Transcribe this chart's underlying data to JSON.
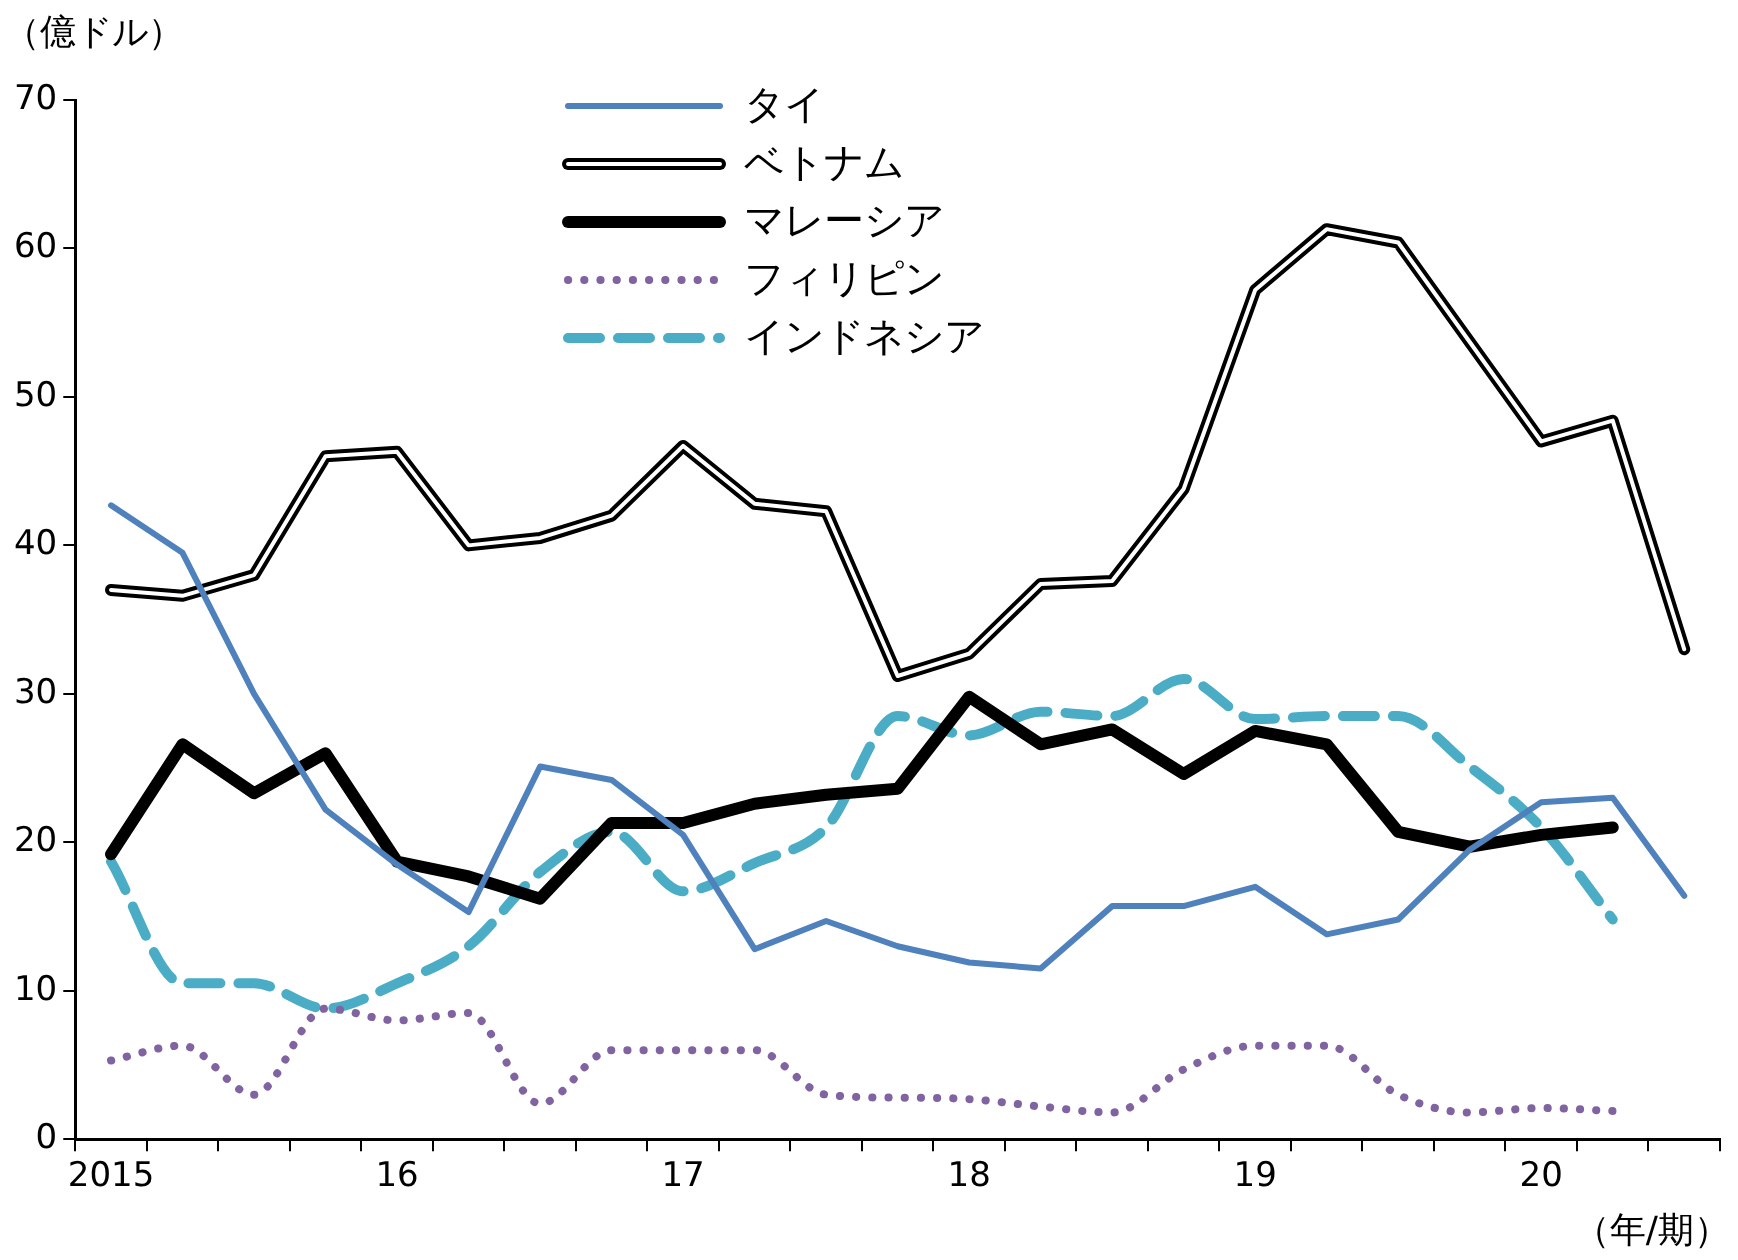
{
  "chart_data": {
    "type": "line",
    "ylabel": "（億ドル）",
    "xlabel": "（年/期）",
    "categories": [
      "2015",
      null,
      null,
      null,
      "16",
      null,
      null,
      null,
      "17",
      null,
      null,
      null,
      "18",
      null,
      null,
      null,
      "19",
      null,
      null,
      null,
      "20",
      null,
      null
    ],
    "series": [
      {
        "name": "タイ",
        "color": "#4f81bd",
        "line_style": "solid",
        "values": [
          42.7,
          39.5,
          30,
          22.2,
          18.5,
          15.3,
          25.1,
          24.2,
          20.5,
          12.8,
          14.7,
          13,
          11.9,
          11.5,
          15.7,
          15.7,
          17,
          13.8,
          14.8,
          19.5,
          22.7,
          23,
          16.4
        ]
      },
      {
        "name": "ベトナム",
        "color": "#000000",
        "line_style": "solid",
        "values": [
          37,
          36.6,
          38,
          46,
          46.3,
          40,
          40.5,
          42,
          46.7,
          42.8,
          42.3,
          31.2,
          32.7,
          37.4,
          37.6,
          43.8,
          57.2,
          61.3,
          60.4,
          53.7,
          47,
          48.4,
          33
        ]
      },
      {
        "name": "マレーシア",
        "color": "#000000",
        "line_style": "solid",
        "values": [
          19.2,
          26.6,
          23.3,
          26,
          18.7,
          17.7,
          16.2,
          21.3,
          21.3,
          22.6,
          23.2,
          23.6,
          29.8,
          26.6,
          27.6,
          24.6,
          27.5,
          26.6,
          20.7,
          19.7,
          20.5,
          21,
          null
        ]
      },
      {
        "name": "フィリピン",
        "color": "#8064a2",
        "line_style": "dotted",
        "values": [
          5.3,
          6.3,
          3,
          8.8,
          8,
          8.5,
          2.4,
          6,
          6,
          6,
          3,
          2.8,
          2.7,
          2.2,
          1.8,
          4.7,
          6.3,
          6.3,
          3,
          1.8,
          2.1,
          1.9,
          null
        ]
      },
      {
        "name": "インドネシア",
        "color": "#4bacc6",
        "line_style": "dashed",
        "values": [
          18.7,
          10.5,
          10.5,
          8.8,
          10.5,
          13,
          18,
          20.7,
          16.7,
          18.6,
          21,
          28.5,
          27.2,
          28.8,
          28.5,
          31,
          28.3,
          28.5,
          28.5,
          25.1,
          21,
          14.8,
          null
        ]
      }
    ],
    "ylim": [
      0,
      70
    ],
    "yticks": [
      0,
      10,
      20,
      30,
      40,
      50,
      60,
      70
    ],
    "grid": false,
    "legend": "top",
    "marker": "none"
  }
}
